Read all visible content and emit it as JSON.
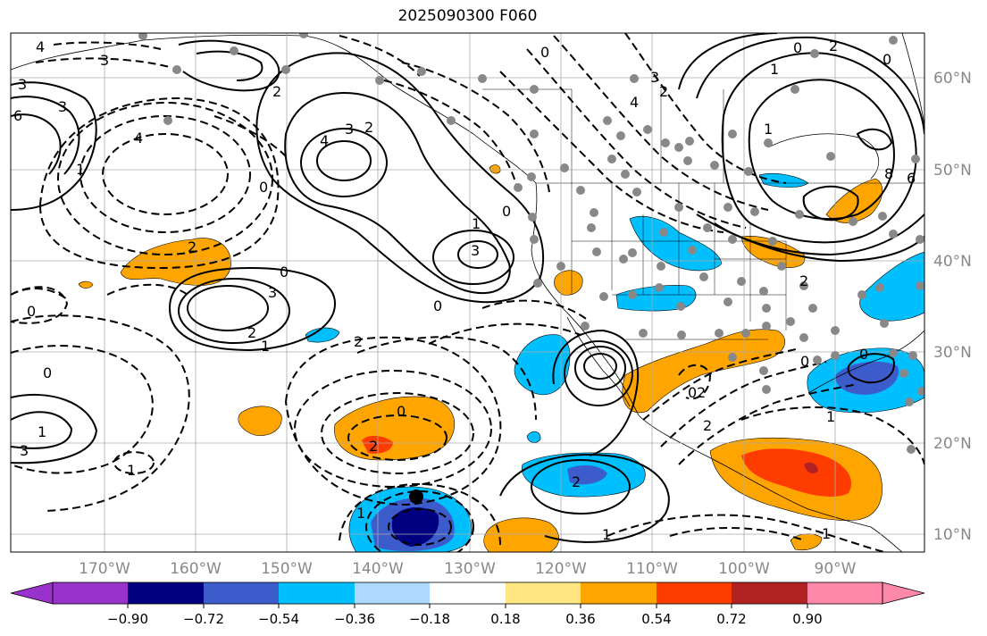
{
  "title": "2025090300 F060",
  "colors": {
    "neg_level_5": "#9932cc",
    "neg_level_4": "#000080",
    "neg_level_3": "#3c5ccc",
    "neg_level_2": "#00bfff",
    "neg_level_1": "#add8ff",
    "neutral": "#ffffff",
    "pos_level_1": "#ffe680",
    "pos_level_2": "#ffa500",
    "pos_level_3": "#ff3c00",
    "pos_level_4": "#b22222",
    "pos_level_5": "#ff88aa",
    "grid": "#aaaaaa",
    "land_outline": "#000000",
    "station_dot": "#888888"
  },
  "lat_ticks": [
    "60°N",
    "50°N",
    "40°N",
    "30°N",
    "20°N",
    "10°N"
  ],
  "lon_ticks": [
    "170°W",
    "160°W",
    "150°W",
    "140°W",
    "130°W",
    "120°W",
    "110°W",
    "100°W",
    "90°W"
  ],
  "colorbar": {
    "labels": [
      "−0.90",
      "−0.72",
      "−0.54",
      "−0.36",
      "−0.18",
      "0.18",
      "0.36",
      "0.54",
      "0.72",
      "0.90"
    ]
  },
  "contour_labels": [
    "4",
    "3",
    "3",
    "6",
    "3",
    "4",
    "2",
    "0",
    "1",
    "4",
    "3",
    "2",
    "0",
    "3",
    "1",
    "0",
    "2",
    "0",
    "0",
    "3",
    "2",
    "1",
    "0",
    "1",
    "2",
    "3",
    "0",
    "2",
    "1",
    "1",
    "2",
    "1",
    "0",
    "2",
    "1",
    "0",
    "4",
    "3",
    "2",
    "1",
    "0",
    "2",
    "1",
    "6",
    "8",
    "0",
    "0",
    "2",
    "1",
    "0",
    "2"
  ],
  "marker": {
    "label": "storm-center"
  }
}
